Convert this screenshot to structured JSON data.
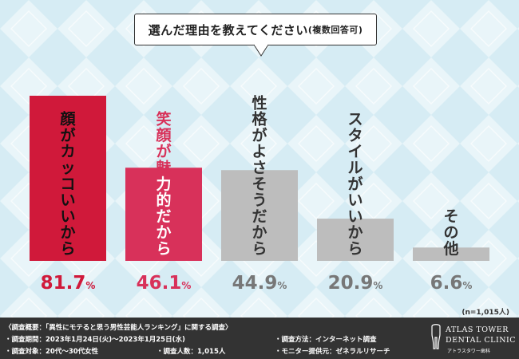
{
  "question": {
    "main": "選んだ理由を教えてください",
    "note": "(複数回答可)"
  },
  "chart_data": {
    "type": "bar",
    "categories": [
      "顔がカッコいいから",
      "笑顔が魅力的だから",
      "性格がよさそうだから",
      "スタイルがいいから",
      "その他"
    ],
    "values": [
      81.7,
      46.1,
      44.9,
      20.9,
      6.6
    ],
    "value_labels": [
      {
        "num": "81.7",
        "unit": "%"
      },
      {
        "num": "46.1",
        "unit": "%"
      },
      {
        "num": "44.9",
        "unit": "%"
      },
      {
        "num": "20.9",
        "unit": "%"
      },
      {
        "num": "6.6",
        "unit": "%"
      }
    ],
    "ylim": [
      0,
      100
    ],
    "grid": false,
    "colors": {
      "bar1": "#d0193a",
      "bar2": "#d8315a",
      "bar_other": "#bdbdbd",
      "bar1_label": "#111111",
      "bar2_label": "#ffffff",
      "other_label": "#333333",
      "value1": "#d0193a",
      "value2": "#d8315a",
      "value_other": "#777777"
    }
  },
  "sample_note": "(n=1,015人)",
  "footer": {
    "summary": "〈調査概要：「異性にモテると思う男性芸能人ランキング」に関する調査〉",
    "period": "・調査期間：2023年1月24日(火)〜2023年1月25日(水)",
    "method": "・調査方法：インターネット調査",
    "target": "・調査対象：20代〜30代女性",
    "count": "・調査人数：1,015人",
    "provider": "・モニター提供元：ゼネラルリサーチ"
  },
  "logo": {
    "line1": "ATLAS TOWER",
    "line2": "DENTAL CLINIC",
    "line3": "アトラスタワー歯科"
  }
}
